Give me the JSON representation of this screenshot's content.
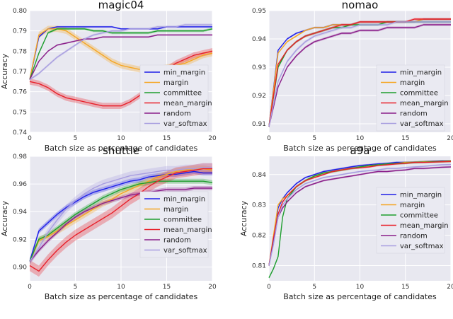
{
  "colors": {
    "panel_bg": "#e8e8f0",
    "grid": "#ffffff",
    "legend_bg": "#eaeaf2",
    "min_margin": "#1f1fe8",
    "margin": "#f5a623",
    "committee": "#1e9e2e",
    "mean_margin": "#e8202a",
    "random": "#8a1e8a",
    "var_softmax": "#a89ee0"
  },
  "chart_data": [
    {
      "type": "line",
      "title": "magic04",
      "xlabel": "Batch size as percentage of candidates",
      "ylabel": "Accuracy",
      "xlim": [
        0,
        20
      ],
      "ylim": [
        0.74,
        0.8
      ],
      "xticks": [
        0,
        5,
        10,
        15,
        20
      ],
      "yticks": [
        0.74,
        0.75,
        0.76,
        0.77,
        0.78,
        0.79,
        0.8
      ],
      "ytick_labels": [
        "0.74",
        "0.75",
        "0.76",
        "0.77",
        "0.78",
        "0.79",
        "0.80"
      ],
      "x": [
        0,
        1,
        2,
        3,
        4,
        5,
        6,
        7,
        8,
        9,
        10,
        11,
        12,
        13,
        14,
        15,
        16,
        17,
        18,
        19,
        20
      ],
      "legend": {
        "position": "center-right"
      },
      "series": [
        {
          "name": "min_margin",
          "key": "min_margin",
          "band": 0.0004,
          "values": [
            0.766,
            0.787,
            0.791,
            0.792,
            0.792,
            0.792,
            0.792,
            0.792,
            0.792,
            0.792,
            0.791,
            0.791,
            0.791,
            0.791,
            0.791,
            0.792,
            0.792,
            0.792,
            0.792,
            0.792,
            0.792
          ]
        },
        {
          "name": "margin",
          "key": "margin",
          "band": 0.0015,
          "values": [
            0.766,
            0.788,
            0.791,
            0.791,
            0.79,
            0.787,
            0.784,
            0.781,
            0.778,
            0.775,
            0.773,
            0.772,
            0.771,
            0.771,
            0.771,
            0.772,
            0.773,
            0.774,
            0.776,
            0.778,
            0.779
          ]
        },
        {
          "name": "committee",
          "key": "committee",
          "band": 0.0006,
          "values": [
            0.766,
            0.779,
            0.789,
            0.791,
            0.791,
            0.791,
            0.791,
            0.79,
            0.79,
            0.789,
            0.789,
            0.789,
            0.789,
            0.789,
            0.79,
            0.79,
            0.79,
            0.79,
            0.79,
            0.79,
            0.791
          ]
        },
        {
          "name": "mean_margin",
          "key": "mean_margin",
          "band": 0.0015,
          "values": [
            0.765,
            0.764,
            0.762,
            0.759,
            0.757,
            0.756,
            0.755,
            0.754,
            0.753,
            0.753,
            0.753,
            0.755,
            0.758,
            0.762,
            0.767,
            0.771,
            0.774,
            0.776,
            0.778,
            0.779,
            0.78
          ]
        },
        {
          "name": "random",
          "key": "random",
          "band": 0.0004,
          "values": [
            0.766,
            0.775,
            0.78,
            0.783,
            0.784,
            0.785,
            0.786,
            0.786,
            0.787,
            0.787,
            0.787,
            0.787,
            0.787,
            0.787,
            0.788,
            0.788,
            0.788,
            0.788,
            0.788,
            0.788,
            0.788
          ]
        },
        {
          "name": "var_softmax",
          "key": "var_softmax",
          "band": 0.0006,
          "values": [
            0.766,
            0.769,
            0.773,
            0.777,
            0.78,
            0.783,
            0.786,
            0.788,
            0.789,
            0.79,
            0.79,
            0.791,
            0.791,
            0.791,
            0.792,
            0.792,
            0.792,
            0.793,
            0.793,
            0.793,
            0.793
          ]
        }
      ]
    },
    {
      "type": "line",
      "title": "nomao",
      "xlabel": "Batch size as percentage of candidates",
      "ylabel": "",
      "xlim": [
        0,
        20
      ],
      "ylim": [
        0.907,
        0.95
      ],
      "xticks": [
        0,
        5,
        10,
        15,
        20
      ],
      "yticks": [
        0.91,
        0.92,
        0.93,
        0.94,
        0.95
      ],
      "ytick_labels": [
        "0.91",
        "0.92",
        "0.93",
        "0.94",
        "0.95"
      ],
      "x": [
        0,
        1,
        2,
        3,
        4,
        5,
        6,
        7,
        8,
        9,
        10,
        11,
        12,
        13,
        14,
        15,
        16,
        17,
        18,
        19,
        20
      ],
      "legend": {
        "position": "center-right"
      },
      "series": [
        {
          "name": "min_margin",
          "key": "min_margin",
          "band": 0.0003,
          "values": [
            0.909,
            0.936,
            0.94,
            0.942,
            0.943,
            0.944,
            0.944,
            0.945,
            0.945,
            0.945,
            0.946,
            0.946,
            0.946,
            0.946,
            0.946,
            0.946,
            0.946,
            0.947,
            0.947,
            0.947,
            0.947
          ]
        },
        {
          "name": "margin",
          "key": "margin",
          "band": 0.0003,
          "values": [
            0.909,
            0.935,
            0.939,
            0.941,
            0.943,
            0.944,
            0.944,
            0.945,
            0.945,
            0.945,
            0.946,
            0.946,
            0.946,
            0.946,
            0.946,
            0.946,
            0.946,
            0.947,
            0.947,
            0.947,
            0.947
          ]
        },
        {
          "name": "committee",
          "key": "committee",
          "band": 0.0004,
          "values": [
            0.909,
            0.93,
            0.936,
            0.939,
            0.941,
            0.942,
            0.943,
            0.944,
            0.944,
            0.945,
            0.945,
            0.945,
            0.945,
            0.946,
            0.946,
            0.946,
            0.946,
            0.946,
            0.946,
            0.946,
            0.946
          ]
        },
        {
          "name": "mean_margin",
          "key": "mean_margin",
          "band": 0.0004,
          "values": [
            0.909,
            0.931,
            0.936,
            0.939,
            0.941,
            0.942,
            0.943,
            0.944,
            0.945,
            0.945,
            0.946,
            0.946,
            0.946,
            0.946,
            0.946,
            0.946,
            0.947,
            0.947,
            0.947,
            0.947,
            0.947
          ]
        },
        {
          "name": "random",
          "key": "random",
          "band": 0.0004,
          "values": [
            0.909,
            0.923,
            0.93,
            0.934,
            0.937,
            0.939,
            0.94,
            0.941,
            0.942,
            0.942,
            0.943,
            0.943,
            0.943,
            0.944,
            0.944,
            0.944,
            0.944,
            0.945,
            0.945,
            0.945,
            0.945
          ]
        },
        {
          "name": "var_softmax",
          "key": "var_softmax",
          "band": 0.0005,
          "values": [
            0.909,
            0.925,
            0.932,
            0.936,
            0.939,
            0.941,
            0.942,
            0.943,
            0.944,
            0.944,
            0.945,
            0.945,
            0.945,
            0.945,
            0.946,
            0.946,
            0.946,
            0.946,
            0.946,
            0.946,
            0.946
          ]
        }
      ]
    },
    {
      "type": "line",
      "title": "shuttle",
      "xlabel": "Batch size as percentage of candidates",
      "ylabel": "Accuracy",
      "xlim": [
        0,
        20
      ],
      "ylim": [
        0.89,
        0.98
      ],
      "xticks": [
        0,
        5,
        10,
        15,
        20
      ],
      "yticks": [
        0.9,
        0.92,
        0.94,
        0.96,
        0.98
      ],
      "ytick_labels": [
        "0.90",
        "0.92",
        "0.94",
        "0.96",
        "0.98"
      ],
      "x": [
        0,
        1,
        2,
        3,
        4,
        5,
        6,
        7,
        8,
        9,
        10,
        11,
        12,
        13,
        14,
        15,
        16,
        17,
        18,
        19,
        20
      ],
      "legend": {
        "position": "lower-right"
      },
      "series": [
        {
          "name": "min_margin",
          "key": "min_margin",
          "band": 0.0018,
          "values": [
            0.904,
            0.926,
            0.932,
            0.938,
            0.943,
            0.947,
            0.951,
            0.954,
            0.956,
            0.958,
            0.96,
            0.962,
            0.963,
            0.965,
            0.966,
            0.967,
            0.967,
            0.968,
            0.969,
            0.968,
            0.968
          ]
        },
        {
          "name": "margin",
          "key": "margin",
          "band": 0.0025,
          "values": [
            0.904,
            0.919,
            0.922,
            0.926,
            0.93,
            0.934,
            0.938,
            0.942,
            0.946,
            0.949,
            0.953,
            0.956,
            0.959,
            0.962,
            0.965,
            0.967,
            0.969,
            0.97,
            0.971,
            0.971,
            0.97
          ]
        },
        {
          "name": "committee",
          "key": "committee",
          "band": 0.0018,
          "values": [
            0.904,
            0.92,
            0.923,
            0.928,
            0.933,
            0.938,
            0.942,
            0.946,
            0.95,
            0.953,
            0.956,
            0.958,
            0.96,
            0.961,
            0.962,
            0.962,
            0.962,
            0.962,
            0.962,
            0.962,
            0.961
          ]
        },
        {
          "name": "mean_margin",
          "key": "mean_margin",
          "band": 0.004,
          "values": [
            0.901,
            0.897,
            0.905,
            0.912,
            0.918,
            0.923,
            0.927,
            0.931,
            0.935,
            0.939,
            0.944,
            0.949,
            0.953,
            0.958,
            0.962,
            0.965,
            0.968,
            0.969,
            0.97,
            0.971,
            0.971
          ]
        },
        {
          "name": "random",
          "key": "random",
          "band": 0.0015,
          "values": [
            0.904,
            0.912,
            0.919,
            0.925,
            0.931,
            0.936,
            0.94,
            0.943,
            0.946,
            0.948,
            0.95,
            0.952,
            0.953,
            0.954,
            0.955,
            0.956,
            0.956,
            0.956,
            0.957,
            0.957,
            0.957
          ]
        },
        {
          "name": "var_softmax",
          "key": "var_softmax",
          "band": 0.003,
          "values": [
            0.904,
            0.914,
            0.925,
            0.934,
            0.942,
            0.948,
            0.953,
            0.957,
            0.96,
            0.962,
            0.964,
            0.966,
            0.967,
            0.968,
            0.969,
            0.97,
            0.97,
            0.971,
            0.971,
            0.972,
            0.972
          ]
        }
      ]
    },
    {
      "type": "line",
      "title": "a9a",
      "xlabel": "Batch size as percentage of candidates",
      "ylabel": "Accuracy",
      "xlim": [
        0,
        20
      ],
      "ylim": [
        0.805,
        0.846
      ],
      "xticks": [
        0,
        5,
        10,
        15,
        20
      ],
      "yticks": [
        0.81,
        0.82,
        0.83,
        0.84
      ],
      "ytick_labels": [
        "0.81",
        "0.82",
        "0.83",
        "0.84"
      ],
      "x": [
        0,
        0.5,
        1,
        1.5,
        2,
        3,
        4,
        5,
        6,
        7,
        8,
        9,
        10,
        11,
        12,
        13,
        14,
        15,
        16,
        17,
        18,
        19,
        20
      ],
      "legend": {
        "position": "lower-right"
      },
      "series": [
        {
          "name": "min_margin",
          "key": "min_margin",
          "band": 0.0003,
          "values": [
            0.81,
            0.818,
            0.829,
            0.832,
            0.834,
            0.837,
            0.839,
            0.84,
            0.841,
            0.8415,
            0.842,
            0.8425,
            0.843,
            0.8432,
            0.8435,
            0.8437,
            0.844,
            0.844,
            0.844,
            0.8442,
            0.8444,
            0.8445,
            0.8445
          ]
        },
        {
          "name": "margin",
          "key": "margin",
          "band": 0.0003,
          "values": [
            0.81,
            0.82,
            0.83,
            0.832,
            0.833,
            0.836,
            0.838,
            0.8395,
            0.8405,
            0.841,
            0.8415,
            0.842,
            0.8425,
            0.843,
            0.8432,
            0.8435,
            0.8437,
            0.844,
            0.844,
            0.8442,
            0.8443,
            0.8444,
            0.8445
          ]
        },
        {
          "name": "committee",
          "key": "committee",
          "band": 0.0004,
          "values": [
            0.806,
            0.809,
            0.813,
            0.826,
            0.832,
            0.836,
            0.838,
            0.8395,
            0.8405,
            0.841,
            0.8415,
            0.842,
            0.8425,
            0.843,
            0.8432,
            0.8435,
            0.8437,
            0.8438,
            0.844,
            0.8441,
            0.8442,
            0.8443,
            0.8444
          ]
        },
        {
          "name": "mean_margin",
          "key": "mean_margin",
          "band": 0.0003,
          "values": [
            0.81,
            0.819,
            0.827,
            0.831,
            0.833,
            0.836,
            0.838,
            0.839,
            0.84,
            0.841,
            0.8415,
            0.842,
            0.8422,
            0.8425,
            0.843,
            0.8432,
            0.8435,
            0.8437,
            0.844,
            0.844,
            0.8441,
            0.8442,
            0.8443
          ]
        },
        {
          "name": "random",
          "key": "random",
          "band": 0.0003,
          "values": [
            0.81,
            0.818,
            0.826,
            0.829,
            0.831,
            0.834,
            0.836,
            0.837,
            0.838,
            0.8385,
            0.839,
            0.8395,
            0.84,
            0.8405,
            0.841,
            0.841,
            0.8413,
            0.8415,
            0.842,
            0.842,
            0.8422,
            0.8424,
            0.8425
          ]
        },
        {
          "name": "var_softmax",
          "key": "var_softmax",
          "band": 0.0003,
          "values": [
            0.81,
            0.817,
            0.826,
            0.83,
            0.832,
            0.835,
            0.837,
            0.838,
            0.839,
            0.8395,
            0.84,
            0.8405,
            0.841,
            0.8413,
            0.8415,
            0.842,
            0.842,
            0.8423,
            0.8425,
            0.8427,
            0.843,
            0.8432,
            0.8433
          ]
        }
      ]
    }
  ]
}
